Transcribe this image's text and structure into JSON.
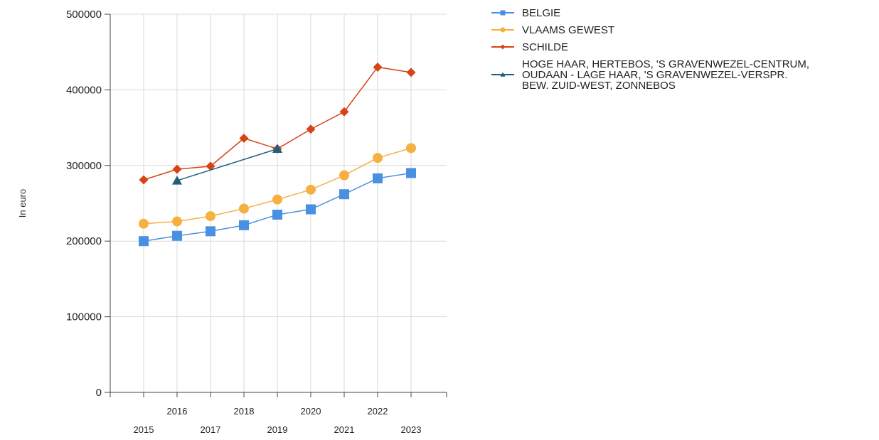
{
  "chart_data": {
    "type": "line",
    "ylabel": "In euro",
    "ylim": [
      0,
      500000
    ],
    "y_ticks": [
      "0",
      "100000",
      "200000",
      "300000",
      "400000",
      "500000"
    ],
    "categories": [
      "2015",
      "2016",
      "2017",
      "2018",
      "2019",
      "2020",
      "2021",
      "2022",
      "2023"
    ],
    "grid": true,
    "legend_position": "top-right",
    "series": [
      {
        "name": "BELGIE",
        "color": "#4a90e2",
        "marker": "square",
        "values": [
          200000,
          207000,
          213000,
          221000,
          235000,
          242000,
          262000,
          283000,
          290000
        ]
      },
      {
        "name": "VLAAMS GEWEST",
        "color": "#f5b041",
        "marker": "circle",
        "values": [
          223000,
          226000,
          233000,
          243000,
          255000,
          268000,
          287000,
          310000,
          323000
        ]
      },
      {
        "name": "SCHILDE",
        "color": "#d84315",
        "marker": "diamond",
        "values": [
          281000,
          295000,
          299000,
          336000,
          322000,
          348000,
          371000,
          430000,
          423000
        ]
      },
      {
        "name": "HOGE HAAR, HERTEBOS, 'S GRAVENWEZEL-CENTRUM, OUDAAN - LAGE HAAR, 'S GRAVENWEZEL-VERSPR. BEW. ZUID-WEST, ZONNEBOS",
        "legend_lines": [
          "HOGE HAAR, HERTEBOS, 'S GRAVENWEZEL-CENTRUM,",
          "OUDAAN - LAGE HAAR, 'S GRAVENWEZEL-VERSPR.",
          "BEW. ZUID-WEST, ZONNEBOS"
        ],
        "color": "#1f5f7a",
        "marker": "triangle",
        "values": [
          null,
          280000,
          null,
          null,
          322000,
          null,
          null,
          null,
          null
        ]
      }
    ]
  }
}
